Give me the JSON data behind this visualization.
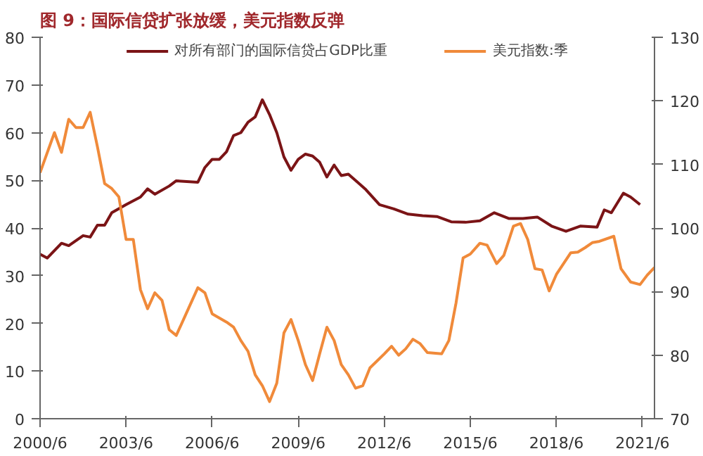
{
  "chart_data": {
    "type": "line",
    "title": "图 9：国际信贷扩张放缓，美元指数反弹",
    "xlim": [
      "2000-06",
      "2021-11"
    ],
    "xticks": [
      {
        "value": "2000-06",
        "label": "2000/6"
      },
      {
        "value": "2003-06",
        "label": "2003/6"
      },
      {
        "value": "2006-06",
        "label": "2006/6"
      },
      {
        "value": "2009-06",
        "label": "2009/6"
      },
      {
        "value": "2012-06",
        "label": "2012/6"
      },
      {
        "value": "2015-06",
        "label": "2015/6"
      },
      {
        "value": "2018-06",
        "label": "2018/6"
      },
      {
        "value": "2021-06",
        "label": "2021/6"
      }
    ],
    "ylim": [
      0,
      80
    ],
    "yticks": [
      0,
      10,
      20,
      30,
      40,
      50,
      60,
      70,
      80
    ],
    "y2lim": [
      70,
      130
    ],
    "y2ticks": [
      70,
      80,
      90,
      100,
      110,
      120,
      130
    ],
    "grid": false,
    "legend": "top",
    "line_style": "solid",
    "marker": "none",
    "series": [
      {
        "name": "对所有部门的国际信贷占GDP比重",
        "color": "#7b1416",
        "x": [
          "2000-06",
          "2000-09",
          "2001-03",
          "2001-06",
          "2001-12",
          "2002-03",
          "2002-06",
          "2002-09",
          "2002-12",
          "2003-06",
          "2003-12",
          "2004-03",
          "2004-06",
          "2004-12",
          "2005-03",
          "2005-12",
          "2006-03",
          "2006-06",
          "2006-09",
          "2006-12",
          "2007-03",
          "2007-06",
          "2007-09",
          "2007-12",
          "2008-03",
          "2008-06",
          "2008-09",
          "2008-12",
          "2009-03",
          "2009-06",
          "2009-09",
          "2009-12",
          "2010-03",
          "2010-06",
          "2010-09",
          "2010-12",
          "2011-03",
          "2011-10",
          "2012-04",
          "2012-10",
          "2013-04",
          "2013-10",
          "2014-04",
          "2014-10",
          "2015-04",
          "2015-10",
          "2016-04",
          "2016-10",
          "2017-04",
          "2017-10",
          "2018-04",
          "2018-10",
          "2019-04",
          "2019-11",
          "2020-02",
          "2020-05",
          "2020-10",
          "2021-01",
          "2021-05"
        ],
        "values": [
          34.5,
          33.7,
          36.8,
          36.3,
          38.4,
          38.1,
          40.6,
          40.6,
          43.2,
          44.9,
          46.5,
          48.2,
          47.1,
          48.8,
          49.9,
          49.6,
          52.7,
          54.4,
          54.4,
          56,
          59.4,
          60,
          62.2,
          63.3,
          66.9,
          63.8,
          60,
          54.9,
          52.1,
          54.4,
          55.5,
          55.1,
          53.8,
          50.7,
          53.2,
          51,
          51.3,
          48.2,
          44.9,
          44,
          42.9,
          42.6,
          42.4,
          41.3,
          41.2,
          41.5,
          43.2,
          42,
          42,
          42.3,
          40.4,
          39.3,
          40.4,
          40.2,
          43.8,
          43.2,
          47.3,
          46.5,
          44.9
        ]
      },
      {
        "name": "美元指数:季",
        "color": "#f08a3a",
        "axis": "y2",
        "x": [
          "2000-06",
          "2000-12",
          "2001-03",
          "2001-06",
          "2001-09",
          "2001-12",
          "2002-03",
          "2002-06",
          "2002-09",
          "2002-12",
          "2003-03",
          "2003-06",
          "2003-09",
          "2003-12",
          "2004-03",
          "2004-06",
          "2004-09",
          "2004-12",
          "2005-03",
          "2005-06",
          "2005-12",
          "2006-03",
          "2006-06",
          "2006-12",
          "2007-03",
          "2007-06",
          "2007-09",
          "2007-12",
          "2008-03",
          "2008-06",
          "2008-09",
          "2008-12",
          "2009-03",
          "2009-06",
          "2009-09",
          "2009-12",
          "2010-03",
          "2010-06",
          "2010-09",
          "2010-12",
          "2011-03",
          "2011-06",
          "2011-09",
          "2011-12",
          "2012-06",
          "2012-09",
          "2012-12",
          "2013-03",
          "2013-06",
          "2013-09",
          "2013-12",
          "2014-06",
          "2014-09",
          "2014-12",
          "2015-03",
          "2015-06",
          "2015-10",
          "2016-01",
          "2016-05",
          "2016-08",
          "2016-12",
          "2017-03",
          "2017-06",
          "2017-09",
          "2017-12",
          "2018-03",
          "2018-06",
          "2018-12",
          "2019-03",
          "2019-06",
          "2019-09",
          "2019-12",
          "2020-06",
          "2020-09",
          "2021-01",
          "2021-05",
          "2021-08",
          "2021-11"
        ],
        "values": [
          108.7,
          115,
          111.9,
          117.1,
          115.8,
          115.8,
          118.2,
          112.8,
          107,
          106.2,
          104.9,
          98.2,
          98.2,
          90.3,
          87.3,
          89.8,
          88.6,
          84,
          83.1,
          85.6,
          90.6,
          89.8,
          86.5,
          85.2,
          84.4,
          82.3,
          80.6,
          76.9,
          75.2,
          72.7,
          75.6,
          83.5,
          85.6,
          82.3,
          78.5,
          76,
          80.2,
          84.4,
          82.3,
          78.5,
          76.9,
          74.8,
          75.2,
          78,
          80.2,
          81.4,
          80,
          81,
          82.5,
          81.8,
          80.4,
          80.2,
          82.3,
          88.2,
          95.3,
          95.9,
          97.6,
          97.3,
          94.4,
          95.7,
          100.3,
          100.7,
          98.2,
          93.6,
          93.4,
          90.1,
          92.7,
          96.1,
          96.2,
          96.9,
          97.7,
          97.9,
          98.7,
          93.6,
          91.5,
          91.1,
          92.6,
          93.8
        ]
      }
    ]
  }
}
